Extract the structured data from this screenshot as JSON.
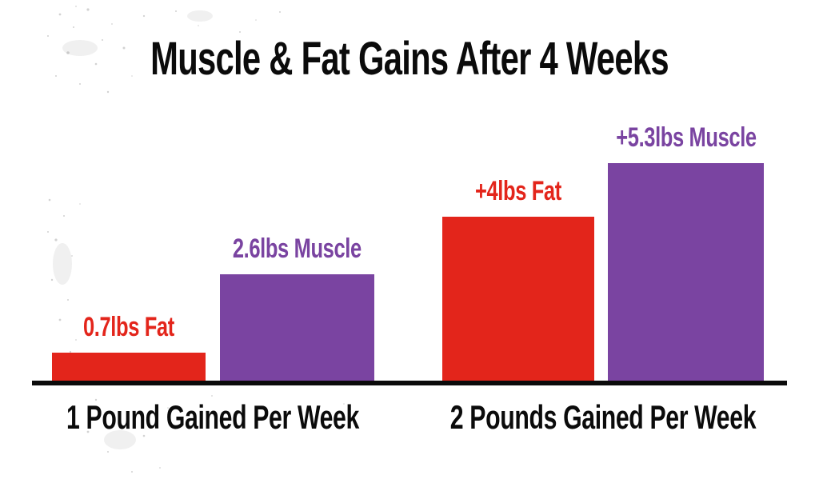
{
  "chart_data": {
    "type": "bar",
    "title": "Muscle & Fat Gains After 4 Weeks",
    "unit": "lbs",
    "categories": [
      "1 Pound Gained Per Week",
      "2 Pounds Gained Per Week"
    ],
    "series": [
      {
        "name": "Fat",
        "color": "#e3251b",
        "values": [
          0.7,
          4.0
        ],
        "labels": [
          "0.7lbs Fat",
          "+4lbs Fat"
        ]
      },
      {
        "name": "Muscle",
        "color": "#7a44a1",
        "values": [
          2.6,
          5.3
        ],
        "labels": [
          "2.6lbs Muscle",
          "+5.3lbs Muscle"
        ]
      }
    ],
    "ylim": [
      0,
      6
    ],
    "grid": false,
    "legend_position": "none",
    "axis_color": "#0b0b0b",
    "background": "#ffffff"
  }
}
